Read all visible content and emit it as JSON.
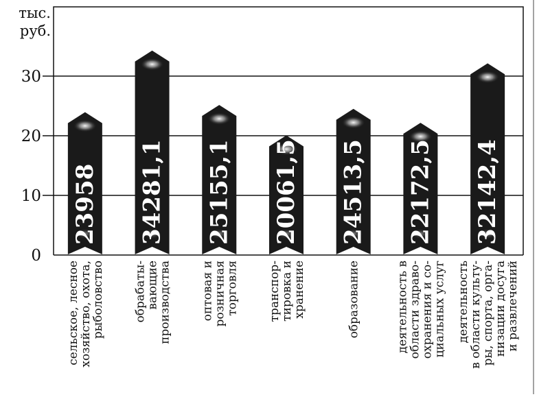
{
  "chart_data": {
    "type": "bar",
    "unit_label": [
      "тыс.",
      "руб."
    ],
    "yticks": [
      0,
      10,
      20,
      30
    ],
    "ylim": [
      0,
      36
    ],
    "categories": [
      [
        "сельское, лесное",
        "хозяйство, охота,",
        "рыболовство"
      ],
      [
        "обрабаты-",
        "вающие",
        "производства"
      ],
      [
        "оптовая и",
        "розничная",
        "торговля"
      ],
      [
        "транспор-",
        "тировка и",
        "хранение"
      ],
      [
        "образование"
      ],
      [
        "деятельность в",
        "области здраво-",
        "охранения и со-",
        "циальных услуг"
      ],
      [
        "деятельность",
        "в области культу-",
        "ры, спорта, орга-",
        "низации досуга",
        "и развлечений"
      ]
    ],
    "values": [
      23.958,
      34.2811,
      25.1551,
      20.0615,
      24.5135,
      22.1725,
      32.1424
    ],
    "value_labels": [
      "23958",
      "34281,1",
      "25155,1",
      "20061,5",
      "24513,5",
      "22172,5",
      "32142,4"
    ],
    "grid": true,
    "bar_color": "#1a1a1a",
    "text_color": "#111111"
  }
}
